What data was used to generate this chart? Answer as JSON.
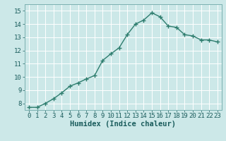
{
  "x": [
    0,
    1,
    2,
    3,
    4,
    5,
    6,
    7,
    8,
    9,
    10,
    11,
    12,
    13,
    14,
    15,
    16,
    17,
    18,
    19,
    20,
    21,
    22,
    23
  ],
  "y": [
    7.7,
    7.7,
    8.0,
    8.35,
    8.8,
    9.3,
    9.55,
    9.85,
    10.1,
    11.25,
    11.75,
    12.2,
    13.2,
    14.0,
    14.3,
    14.85,
    14.55,
    13.85,
    13.75,
    13.2,
    13.1,
    12.8,
    12.8,
    12.65
  ],
  "line_color": "#2e7d6e",
  "marker": "+",
  "marker_color": "#2e7d6e",
  "bg_color": "#cce8e8",
  "grid_color": "#ffffff",
  "xlabel": "Humidex (Indice chaleur)",
  "xlabel_fontsize": 7.5,
  "ylim": [
    7.5,
    15.5
  ],
  "xlim": [
    -0.5,
    23.5
  ],
  "yticks": [
    8,
    9,
    10,
    11,
    12,
    13,
    14,
    15
  ],
  "xtick_labels": [
    "0",
    "1",
    "2",
    "3",
    "4",
    "5",
    "6",
    "7",
    "8",
    "9",
    "10",
    "11",
    "12",
    "13",
    "14",
    "15",
    "16",
    "17",
    "18",
    "19",
    "20",
    "21",
    "22",
    "23"
  ],
  "tick_fontsize": 6.5,
  "line_width": 1.0,
  "marker_size": 4
}
